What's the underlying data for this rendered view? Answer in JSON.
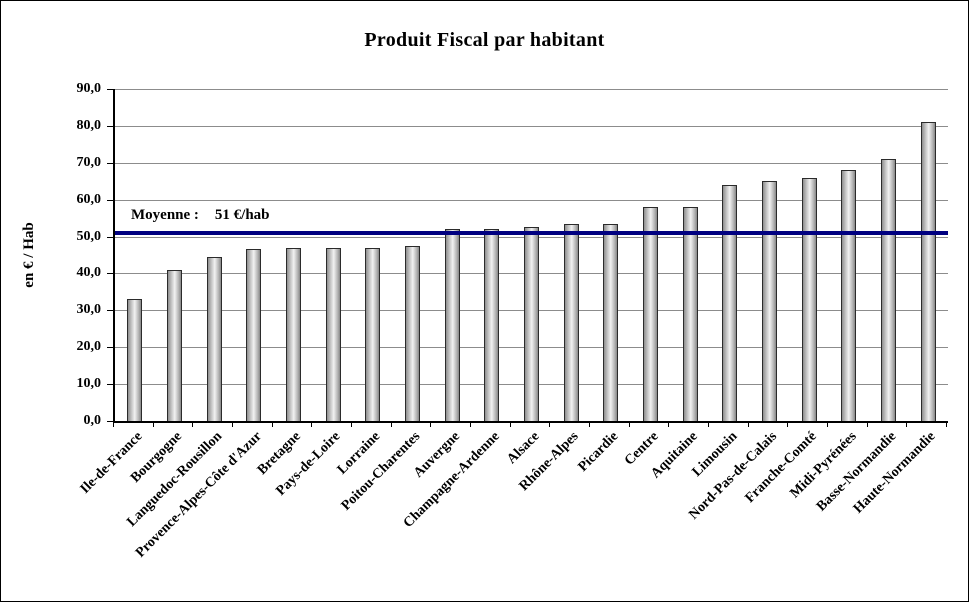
{
  "chart_data": {
    "type": "bar",
    "title": "Produit Fiscal par habitant",
    "ylabel": "en € / Hab",
    "ylim": [
      0,
      90
    ],
    "ytick_step": 10,
    "ytick_labels": [
      "0,0",
      "10,0",
      "20,0",
      "30,0",
      "40,0",
      "50,0",
      "60,0",
      "70,0",
      "80,0",
      "90,0"
    ],
    "categories": [
      "Ile-de-France",
      "Bourgogne",
      "Languedoc-Rousillon",
      "Provence-Alpes-Côte d'Azur",
      "Bretagne",
      "Pays-de-Loire",
      "Lorraine",
      "Poitou-Charentes",
      "Auvergne",
      "Champagne-Ardenne",
      "Alsace",
      "Rhône-Alpes",
      "Picardie",
      "Centre",
      "Aquitaine",
      "Limousin",
      "Nord-Pas-de-Calais",
      "Franche-Comté",
      "Midi-Pyrénées",
      "Basse-Normandie",
      "Haute-Normandie"
    ],
    "values": [
      33,
      41,
      44.5,
      46.5,
      47,
      47,
      47,
      47.5,
      52,
      52,
      52.5,
      53.5,
      53.5,
      58,
      58,
      64,
      65,
      66,
      68,
      71,
      81
    ],
    "average_line": {
      "value": 51,
      "label": "Moyenne :",
      "value_label": "51 €/hab",
      "color": "#000080"
    },
    "bar_color": "#c0c0c0",
    "grid": true,
    "legend_position": "none"
  }
}
